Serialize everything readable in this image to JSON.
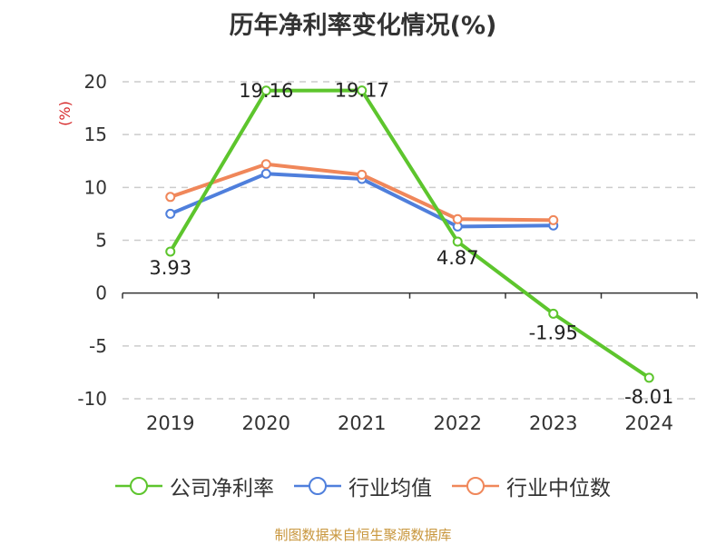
{
  "title": "历年净利率变化情况(%)",
  "source": "制图数据来自恒生聚源数据库",
  "chart_data": {
    "type": "line",
    "title": "历年净利率变化情况(%)",
    "ylabel": "(%)",
    "categories": [
      "2019",
      "2020",
      "2021",
      "2022",
      "2023",
      "2024"
    ],
    "ylim": [
      -10,
      20
    ],
    "yticks": [
      20,
      15,
      10,
      5,
      0,
      -5,
      -10
    ],
    "grid": true,
    "legend_position": "bottom",
    "series": [
      {
        "name": "公司净利率",
        "color": "#5dc52d",
        "values": [
          3.93,
          19.16,
          19.17,
          4.87,
          -1.95,
          -8.01
        ],
        "labels": [
          "3.93",
          "19.16",
          "19.17",
          "4.87",
          "-1.95",
          "-8.01"
        ]
      },
      {
        "name": "行业均值",
        "color": "#4f7fdc",
        "values": [
          7.5,
          11.3,
          10.8,
          6.3,
          6.4,
          null
        ]
      },
      {
        "name": "行业中位数",
        "color": "#f0875a",
        "values": [
          9.1,
          12.2,
          11.2,
          7.0,
          6.9,
          null
        ]
      }
    ]
  }
}
